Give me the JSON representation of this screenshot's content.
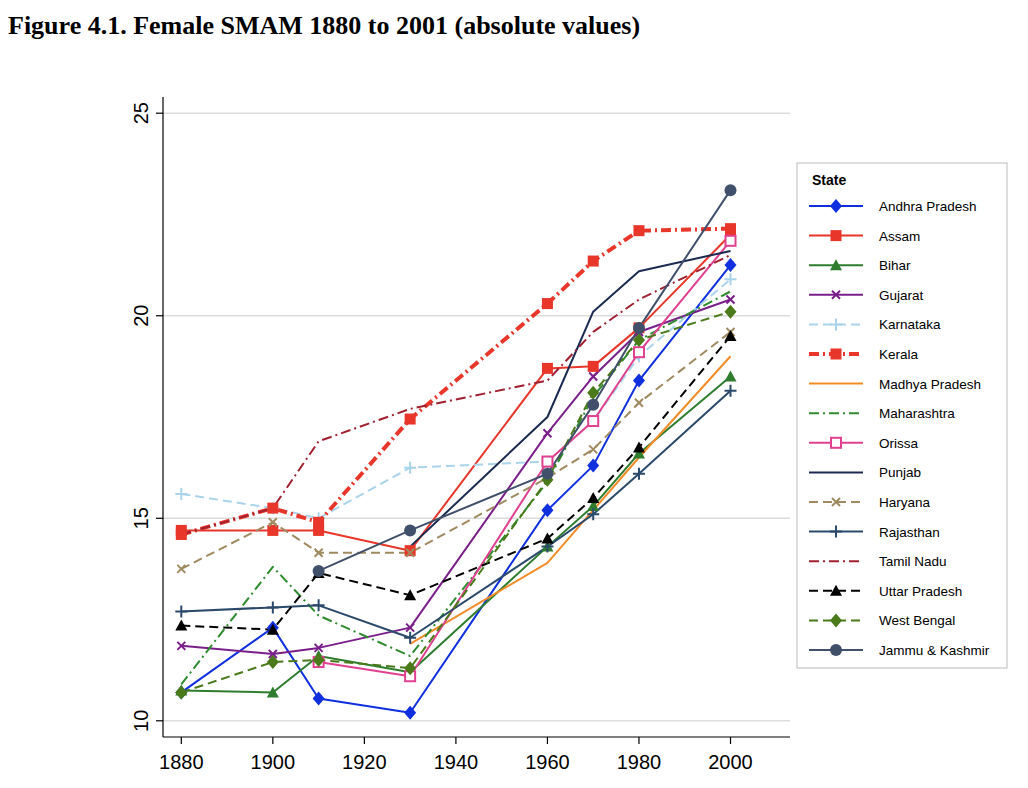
{
  "chart_data": {
    "type": "line",
    "title": "Figure 4.1. Female SMAM 1880 to 2001 (absolute values)",
    "legend_title": "State",
    "legend": "right",
    "grid": true,
    "x": [
      1880,
      1900,
      1910,
      1930,
      1960,
      1970,
      1980,
      2000
    ],
    "xlim": [
      1876,
      2013
    ],
    "xticks": [
      1880,
      1900,
      1920,
      1940,
      1960,
      1980,
      2000
    ],
    "ylim": [
      9.6,
      25.4
    ],
    "yticks": [
      10,
      15,
      20,
      25
    ],
    "series": [
      {
        "name": "Andhra Pradesh",
        "color": "#1030e0",
        "marker": "diamond",
        "line_style": "solid",
        "values": [
          10.7,
          12.3,
          10.55,
          10.2,
          15.2,
          16.3,
          18.4,
          21.25
        ]
      },
      {
        "name": "Assam",
        "color": "#e8372a",
        "marker": "square",
        "line_style": "solid",
        "values": [
          14.7,
          14.7,
          14.7,
          14.2,
          18.7,
          18.75,
          19.7,
          22.0
        ]
      },
      {
        "name": "Bihar",
        "color": "#2e7d2e",
        "marker": "triangle",
        "line_style": "solid",
        "values": [
          10.75,
          10.7,
          11.6,
          11.2,
          14.3,
          15.3,
          16.6,
          18.5
        ]
      },
      {
        "name": "Gujarat",
        "color": "#7a1f8a",
        "marker": "x",
        "line_style": "solid",
        "values": [
          11.85,
          11.65,
          11.8,
          12.3,
          17.1,
          18.5,
          19.6,
          20.4
        ]
      },
      {
        "name": "Karnataka",
        "color": "#a9d4ea",
        "marker": "plus",
        "line_style": "dashed",
        "values": [
          15.6,
          15.25,
          15.0,
          16.25,
          16.4,
          17.4,
          19.0,
          20.9
        ]
      },
      {
        "name": "Kerala",
        "color": "#e8372a",
        "marker": "square",
        "line_style": "dashdot",
        "values": [
          14.6,
          15.25,
          14.9,
          17.45,
          20.3,
          21.35,
          22.1,
          22.15
        ]
      },
      {
        "name": "Madhya Pradesh",
        "color": "#f28c28",
        "marker": "none",
        "line_style": "solid",
        "values": [
          null,
          null,
          null,
          11.9,
          13.9,
          15.2,
          16.5,
          19.0
        ]
      },
      {
        "name": "Maharashtra",
        "color": "#2e8b2e",
        "marker": "none",
        "line_style": "dashdot",
        "values": [
          10.9,
          13.8,
          12.6,
          11.6,
          15.9,
          18.0,
          19.4,
          20.6
        ]
      },
      {
        "name": "Orissa",
        "color": "#e04090",
        "marker": "open-square",
        "line_style": "solid",
        "values": [
          null,
          null,
          11.45,
          11.1,
          16.4,
          17.4,
          19.1,
          21.85
        ]
      },
      {
        "name": "Punjab",
        "color": "#1a2a50",
        "marker": "none",
        "line_style": "solid",
        "values": [
          null,
          null,
          null,
          14.3,
          17.5,
          20.1,
          21.1,
          21.6
        ]
      },
      {
        "name": "Haryana",
        "color": "#a08a60",
        "marker": "x",
        "line_style": "dashed",
        "values": [
          13.75,
          14.9,
          14.15,
          14.15,
          16.0,
          16.7,
          17.85,
          19.6
        ]
      },
      {
        "name": "Rajasthan",
        "color": "#2b4a6b",
        "marker": "plus",
        "line_style": "solid",
        "values": [
          12.7,
          12.8,
          12.85,
          12.05,
          14.3,
          15.1,
          16.1,
          18.15
        ]
      },
      {
        "name": "Tamil Nadu",
        "color": "#a02030",
        "marker": "none",
        "line_style": "dashdot",
        "values": [
          14.6,
          15.25,
          16.9,
          17.7,
          18.4,
          19.6,
          20.4,
          21.5
        ]
      },
      {
        "name": "Uttar Pradesh",
        "color": "#000000",
        "marker": "triangle",
        "line_style": "dashed",
        "values": [
          12.35,
          12.25,
          13.65,
          13.1,
          14.5,
          15.5,
          16.75,
          19.5
        ]
      },
      {
        "name": "West Bengal",
        "color": "#4a7a1a",
        "marker": "diamond",
        "line_style": "dashed",
        "values": [
          10.7,
          11.45,
          11.5,
          11.3,
          15.95,
          18.1,
          19.4,
          20.1
        ]
      },
      {
        "name": "Jammu & Kashmir",
        "color": "#40506a",
        "marker": "circle",
        "line_style": "solid",
        "values": [
          null,
          null,
          13.7,
          14.7,
          16.1,
          17.8,
          19.7,
          23.1
        ]
      }
    ]
  }
}
